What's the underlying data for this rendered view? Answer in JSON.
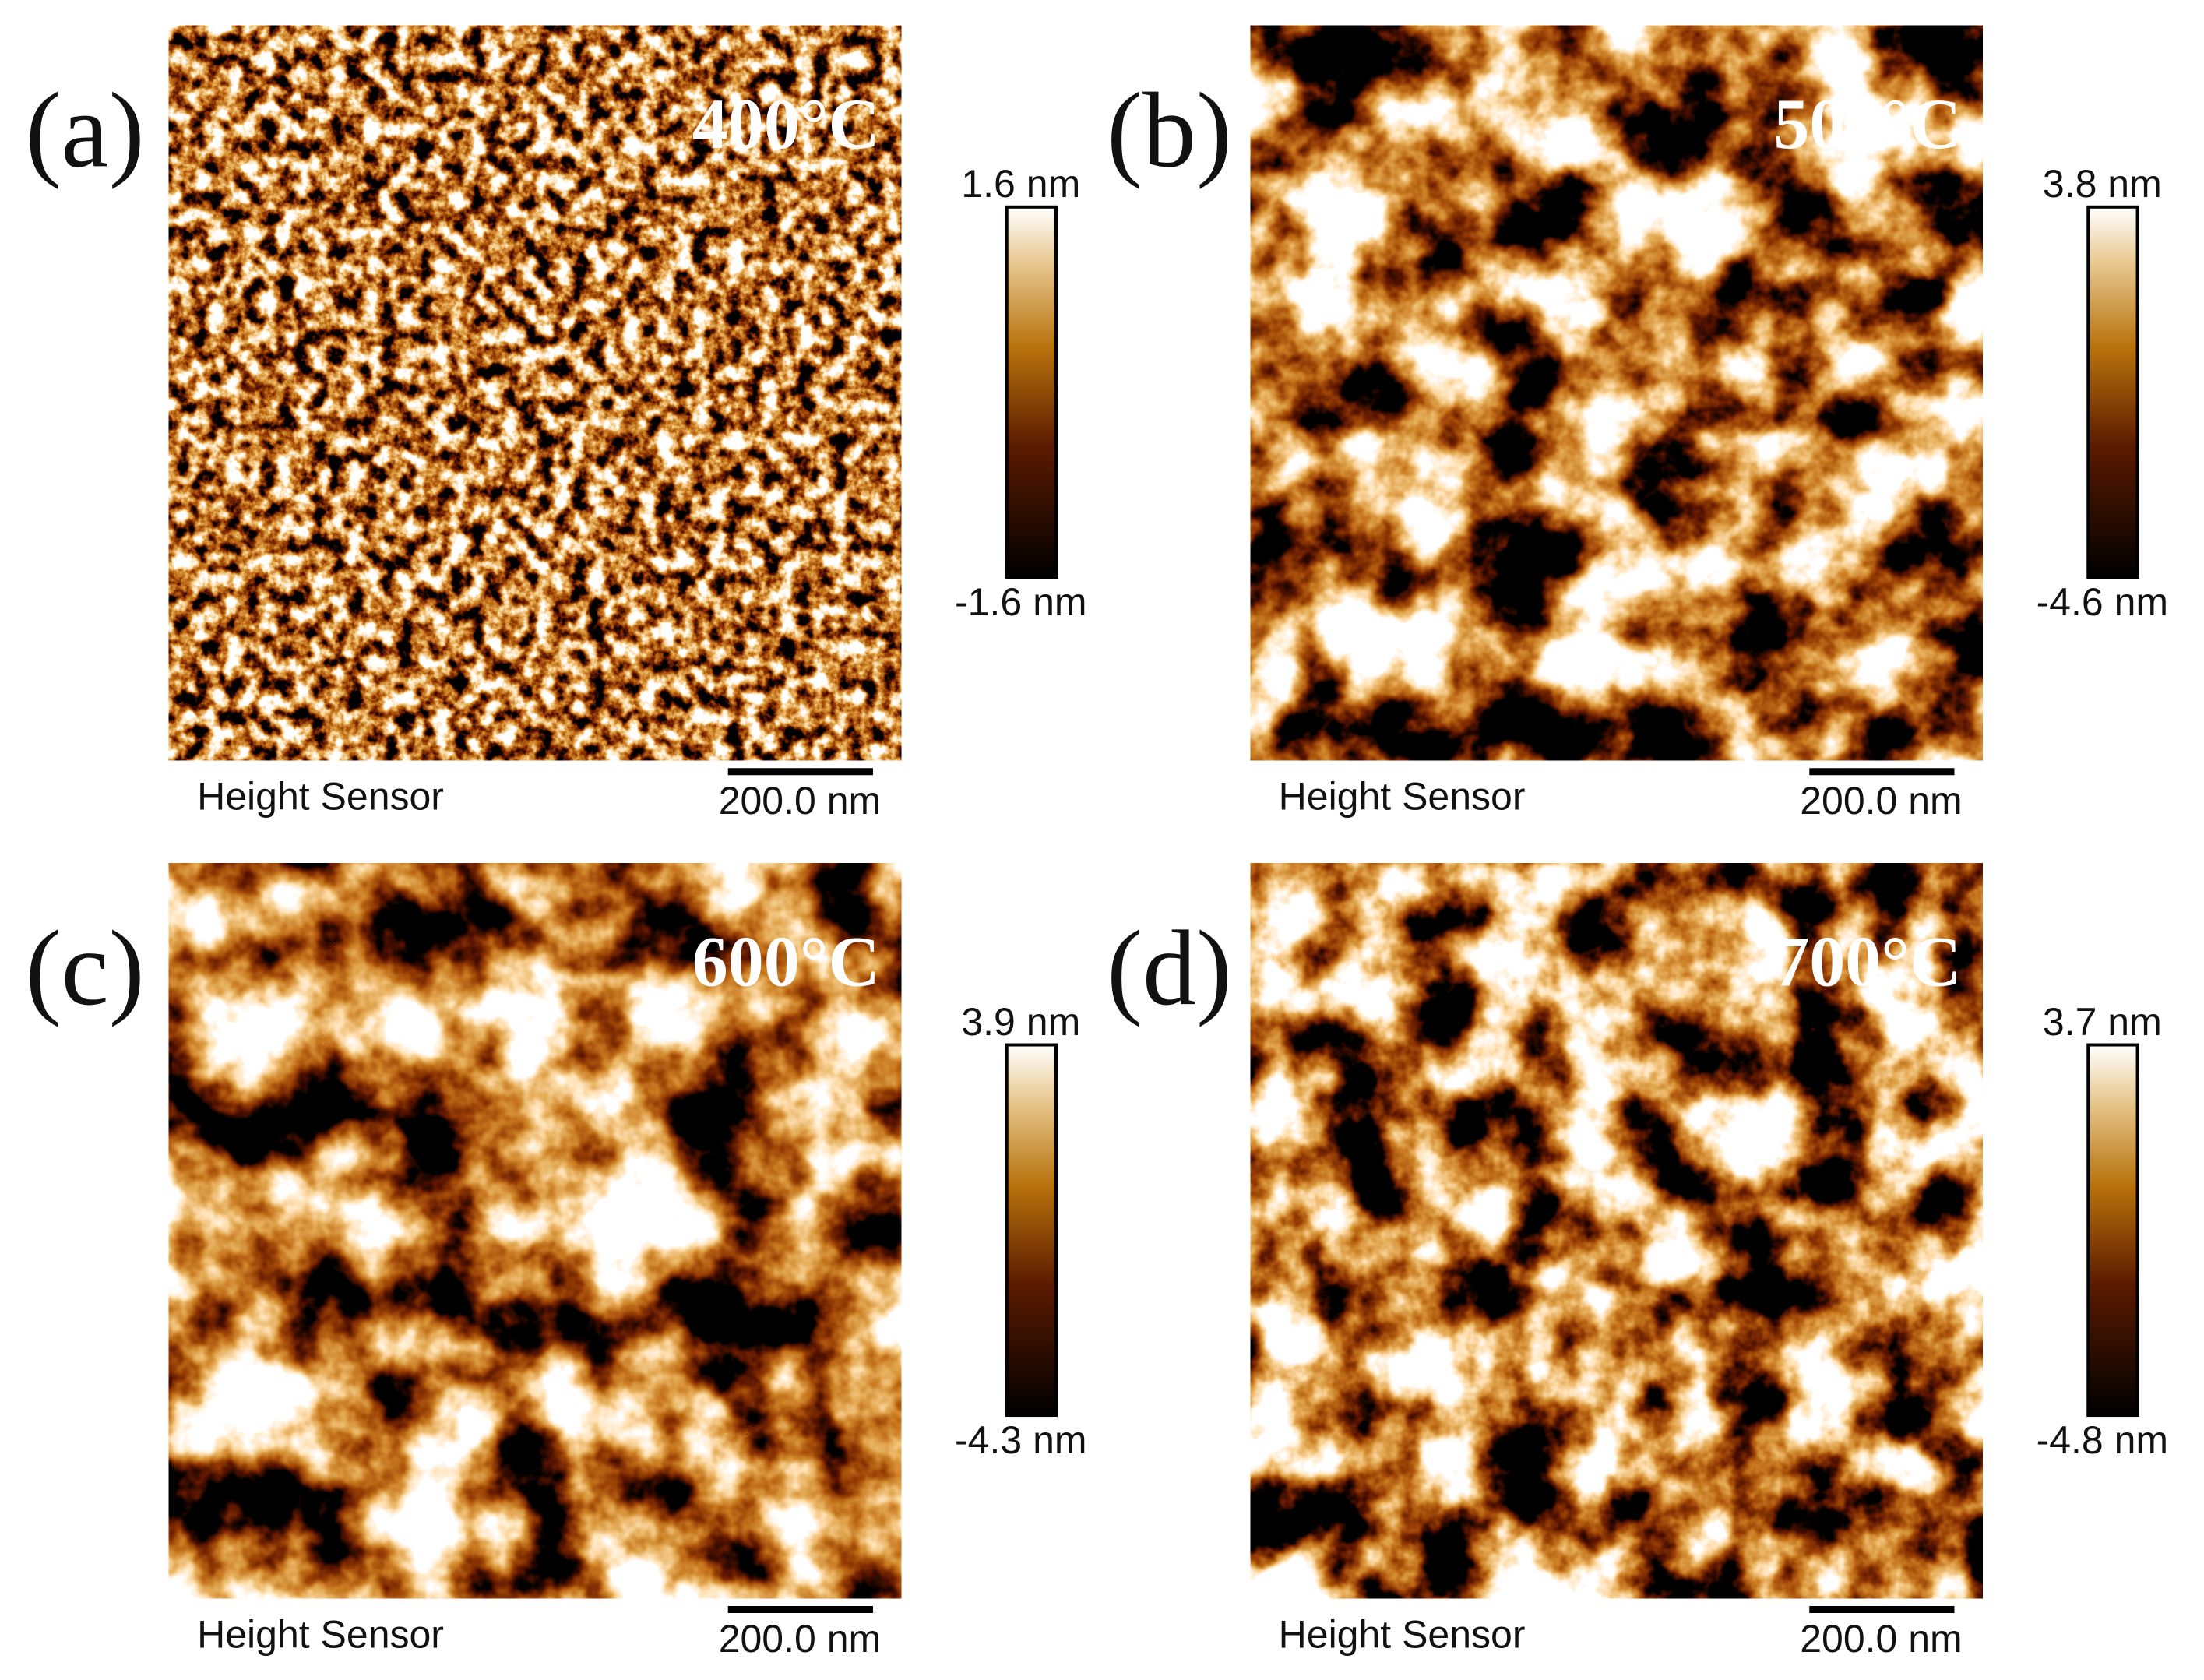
{
  "panels": [
    {
      "label": "(a)",
      "temperature": "400°C",
      "colorbar_max": "1.6 nm",
      "colorbar_min": "-1.6 nm",
      "caption": "Height Sensor",
      "scale_bar": "200.0 nm"
    },
    {
      "label": "(b)",
      "temperature": "500°C",
      "colorbar_max": "3.8 nm",
      "colorbar_min": "-4.6 nm",
      "caption": "Height Sensor",
      "scale_bar": "200.0 nm"
    },
    {
      "label": "(c)",
      "temperature": "600°C",
      "colorbar_max": "3.9 nm",
      "colorbar_min": "-4.3 nm",
      "caption": "Height Sensor",
      "scale_bar": "200.0 nm"
    },
    {
      "label": "(d)",
      "temperature": "700°C",
      "colorbar_max": "3.7 nm",
      "colorbar_min": "-4.8 nm",
      "caption": "Height Sensor",
      "scale_bar": "200.0 nm"
    }
  ]
}
